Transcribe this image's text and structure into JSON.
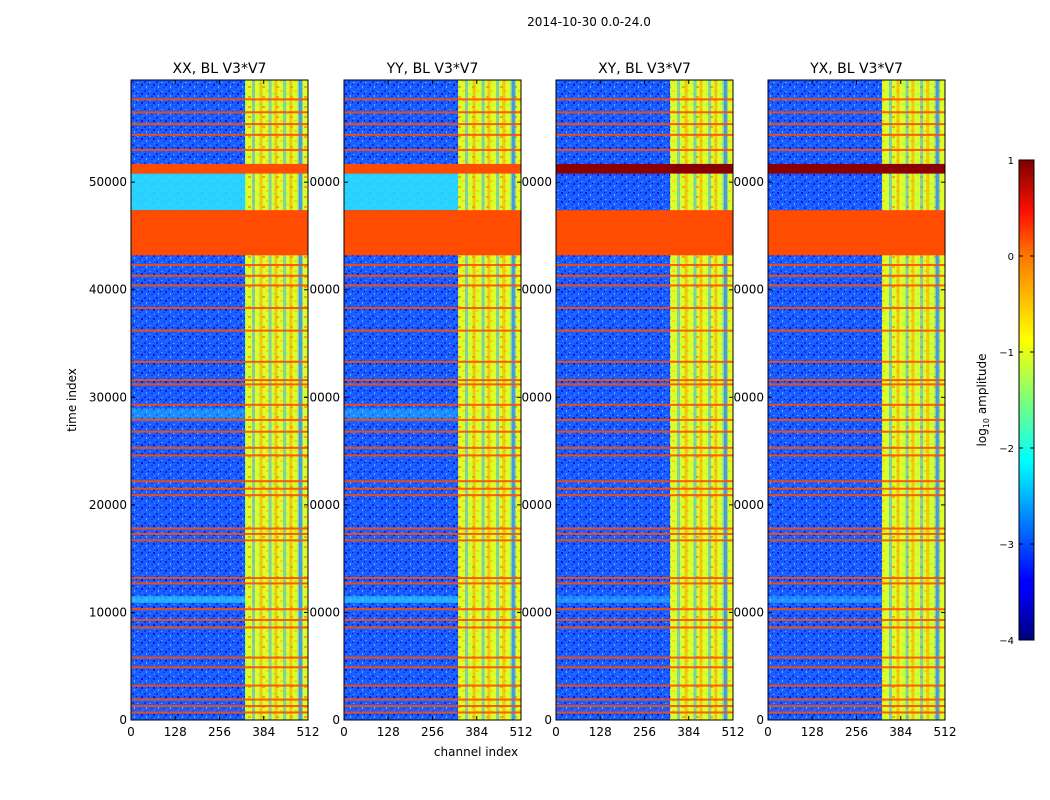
{
  "chart_data": {
    "type": "heatmap",
    "suptitle": "2014-10-30 0.0-24.0",
    "xlabel": "channel index",
    "ylabel": "time index",
    "xlim": [
      0,
      512
    ],
    "ylim": [
      0,
      59500
    ],
    "xticks": [
      0,
      128,
      256,
      384,
      512
    ],
    "yticks": [
      0,
      10000,
      20000,
      30000,
      40000,
      50000
    ],
    "xtick_labels": [
      "0",
      "128",
      "256",
      "384",
      "512"
    ],
    "ytick_labels": [
      "0",
      "10000",
      "20000",
      "30000",
      "40000",
      "50000"
    ],
    "panels": [
      {
        "title": "XX, BL V3*V7",
        "pol": "XX",
        "ylabels_full": true
      },
      {
        "title": "YY, BL V3*V7",
        "pol": "YY",
        "ylabels_full": false
      },
      {
        "title": "XY, BL V3*V7",
        "pol": "XY",
        "ylabels_full": false
      },
      {
        "title": "YX, BL V3*V7",
        "pol": "YX",
        "ylabels_full": false
      }
    ],
    "ytick_labels_clipped": [
      "0",
      "0000",
      "0000",
      "0000",
      "0000",
      "0000"
    ],
    "colorbar": {
      "label": "log10 amplitude",
      "label_base": "log",
      "label_sub": "10",
      "label_rest": " amplitude",
      "range": [
        -4,
        1
      ],
      "ticks": [
        1,
        0,
        -1,
        -2,
        -3,
        -4
      ],
      "tick_labels": [
        "1",
        "0",
        "−1",
        "−2",
        "−3",
        "−4"
      ],
      "colormap": "jet"
    },
    "flagged_time_ranges": [
      [
        43200,
        47400
      ],
      [
        50800,
        51700
      ]
    ],
    "flag_value": 0.0,
    "rfi_channel_band": [
      330,
      512
    ],
    "rfi_level": -1.2,
    "background_level": -3.2,
    "flag_lines_time": [
      700,
      1300,
      1900,
      3200,
      4900,
      5800,
      8600,
      9300,
      10300,
      12700,
      13200,
      16700,
      17300,
      17800,
      20900,
      21500,
      22200,
      24600,
      25300,
      26800,
      27900,
      29300,
      31200,
      31600,
      33300,
      36200,
      38300,
      40400,
      41300,
      42300,
      53000,
      54400,
      55400,
      56500,
      57700
    ]
  }
}
